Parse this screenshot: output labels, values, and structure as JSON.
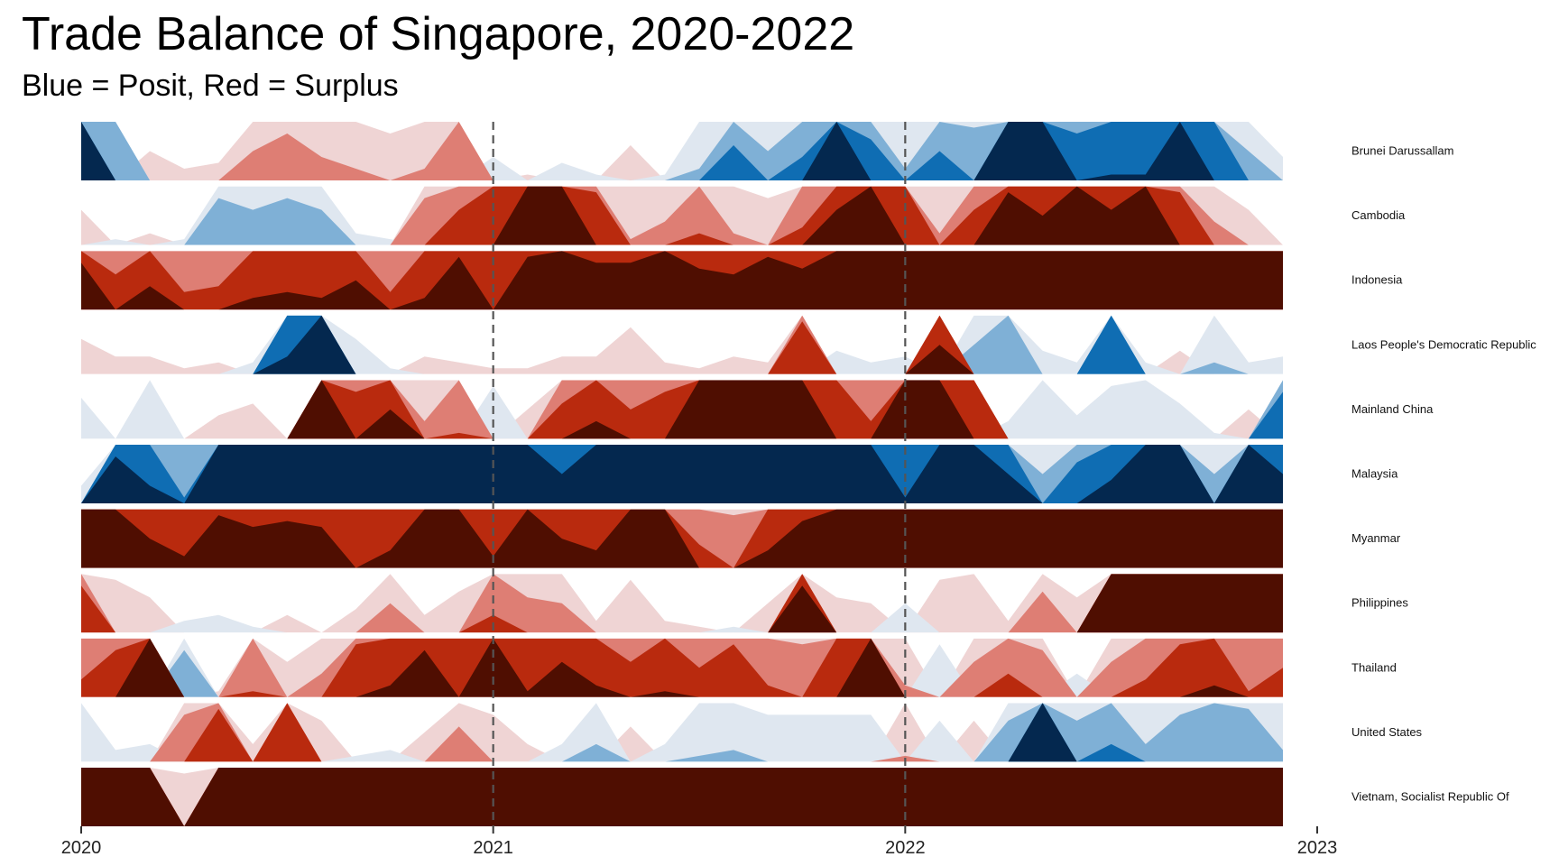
{
  "chart_data": {
    "type": "area",
    "subtype": "horizon",
    "title": "Trade Balance of Singapore, 2020-2022",
    "subtitle": "Blue = Posit, Red = Surplus",
    "x_ticks": [
      "2020",
      "2021",
      "2022",
      "2023"
    ],
    "xlim": [
      2020,
      2023
    ],
    "reference_lines": [
      2021,
      2022
    ],
    "band_size": 1,
    "months_per_series": 36,
    "colors": {
      "positive": [
        "#dfe7f0",
        "#7fb0d6",
        "#0f6db3",
        "#04284f"
      ],
      "negative": [
        "#efd4d4",
        "#de7e74",
        "#b92a0e",
        "#4f0e01"
      ]
    },
    "series": [
      {
        "name": "Brunei Darussallam",
        "values": [
          4,
          2,
          -0.5,
          -0.2,
          -0.3,
          -1.5,
          -1.8,
          -1.4,
          -1.2,
          -0.8,
          -1.2,
          -2,
          0.4,
          -0.1,
          0.3,
          0.1,
          -0.6,
          0.1,
          1.2,
          2.6,
          1.5,
          2.4,
          4,
          2.7,
          1.2,
          2.5,
          1.9,
          4,
          4,
          2.8,
          3.1,
          3.1,
          4,
          3,
          1.5,
          0.4
        ]
      },
      {
        "name": "Cambodia",
        "values": [
          -0.6,
          0.1,
          -0.2,
          0.1,
          1.8,
          1.6,
          1.8,
          1.6,
          0.2,
          0.1,
          -1.8,
          -2.6,
          -3,
          -4,
          -4,
          -2.9,
          -1.1,
          -1.4,
          -2.2,
          -1.2,
          -0.8,
          -2.3,
          -3.6,
          -4,
          -3,
          -1.2,
          -2.6,
          -3.9,
          -3.5,
          -4,
          -3.6,
          -4,
          -2.9,
          -1.4,
          -0.6,
          0
        ]
      },
      {
        "name": "Indonesia",
        "values": [
          -3.8,
          -2.6,
          -3.4,
          -2.3,
          -2.4,
          -3.2,
          -3.3,
          -3.2,
          -3.5,
          -2.3,
          -3.2,
          -3.9,
          -3,
          -3.9,
          -4,
          -3.8,
          -3.8,
          -4,
          -3.7,
          -3.6,
          -3.9,
          -3.7,
          -4,
          -4,
          -4,
          -4,
          -4,
          -4,
          -4,
          -4,
          -4,
          -4,
          -4,
          -4,
          -4,
          -4
        ]
      },
      {
        "name": "Laos People's Democratic Republic",
        "values": [
          -0.6,
          -0.3,
          -0.3,
          -0.1,
          -0.2,
          0.2,
          3.3,
          4,
          0.6,
          0.1,
          -0.3,
          -0.2,
          -0.1,
          -0.1,
          -0.3,
          -0.3,
          -0.8,
          -0.2,
          -0.1,
          -0.3,
          -0.2,
          -2.9,
          0.4,
          0.2,
          0.3,
          -3.5,
          1.5,
          2.0,
          0.4,
          0.2,
          3.0,
          0.2,
          -0.4,
          1.2,
          0.2,
          0.3
        ]
      },
      {
        "name": "Mainland China",
        "values": [
          0.7,
          0,
          1,
          0,
          -0.4,
          -0.6,
          0,
          -4,
          -2.8,
          -3.5,
          -1.3,
          -2.1,
          0.9,
          -0.5,
          -2.6,
          -3.3,
          -2.5,
          -2.8,
          -4,
          -4,
          -4,
          -4,
          -3,
          -2.3,
          -4,
          -4,
          -3,
          0.3,
          1,
          0.4,
          0.9,
          1,
          0.6,
          0.1,
          -0.5,
          2.8
        ]
      },
      {
        "name": "Malaysia",
        "values": [
          0.3,
          3.8,
          3.3,
          2.1,
          4,
          4,
          4,
          4,
          4,
          4,
          4,
          4,
          4,
          4,
          3.5,
          4,
          4,
          4,
          4,
          4,
          4,
          4,
          4,
          4,
          3.1,
          4,
          4,
          3.5,
          1.5,
          2.7,
          3.4,
          4,
          4,
          1.5,
          4,
          3.5
        ]
      },
      {
        "name": "Myanmar",
        "values": [
          -4,
          -4,
          -3.5,
          -3.2,
          -3.9,
          -3.7,
          -3.8,
          -3.7,
          -3,
          -3.3,
          -4,
          -4,
          -3.2,
          -4,
          -3.5,
          -3.3,
          -4,
          -4,
          -2.4,
          -1.9,
          -3.3,
          -3.8,
          -4,
          -4,
          -4,
          -4,
          -4,
          -4,
          -4,
          -4,
          -4,
          -4,
          -4,
          -4,
          -4,
          -4
        ]
      },
      {
        "name": "Philippines",
        "values": [
          -2.8,
          -0.9,
          -0.6,
          0.2,
          0.3,
          0.1,
          -0.3,
          0,
          -0.4,
          -1.5,
          -0.3,
          -0.7,
          -2.3,
          -1.6,
          -1.5,
          -0.2,
          -0.9,
          -0.2,
          -0.1,
          0.1,
          -0.5,
          -3.8,
          -0.6,
          -0.5,
          0.5,
          -0.9,
          -1,
          -0.2,
          -1.7,
          -0.6,
          -4,
          -4,
          -4,
          -4,
          -4,
          -4
        ]
      },
      {
        "name": "Thailand",
        "values": [
          -2.3,
          -2.8,
          -4,
          1.8,
          -0.1,
          -2.1,
          -0.6,
          -1.4,
          -2.9,
          -3.2,
          -3.8,
          -3.0,
          -4,
          -3.1,
          -3.6,
          -3.2,
          -2.6,
          -3.1,
          -2.5,
          -2.9,
          -2.2,
          -1.9,
          -3,
          -4,
          -1.2,
          0.9,
          -1.6,
          -2.4,
          -1.8,
          0.4,
          -1.6,
          -2.3,
          -2.9,
          -3.2,
          -2.1,
          -2.5
        ]
      },
      {
        "name": "United States",
        "values": [
          1,
          0.2,
          0.3,
          -1.8,
          -2.9,
          -0.3,
          -3,
          -0.7,
          0.1,
          0.2,
          -0.5,
          -1.6,
          -0.8,
          -0.3,
          0.3,
          1.3,
          -0.6,
          0.3,
          1.1,
          1.2,
          0.8,
          0.8,
          0.8,
          0.8,
          -1.1,
          0.7,
          -0.7,
          1.7,
          4,
          1.7,
          2.3,
          1.3,
          1.8,
          2.0,
          1.9,
          1.2
        ]
      },
      {
        "name": "Vietnam, Socialist Republic Of",
        "values": [
          -4,
          -4,
          -4,
          -0.9,
          -4,
          -4,
          -4,
          -4,
          -4,
          -4,
          -4,
          -4,
          -4,
          -4,
          -4,
          -4,
          -4,
          -4,
          -4,
          -4,
          -4,
          -4,
          -4,
          -4,
          -4,
          -4,
          -4,
          -4,
          -4,
          -4,
          -4,
          -4,
          -4,
          -4,
          -4,
          -4
        ]
      }
    ]
  }
}
